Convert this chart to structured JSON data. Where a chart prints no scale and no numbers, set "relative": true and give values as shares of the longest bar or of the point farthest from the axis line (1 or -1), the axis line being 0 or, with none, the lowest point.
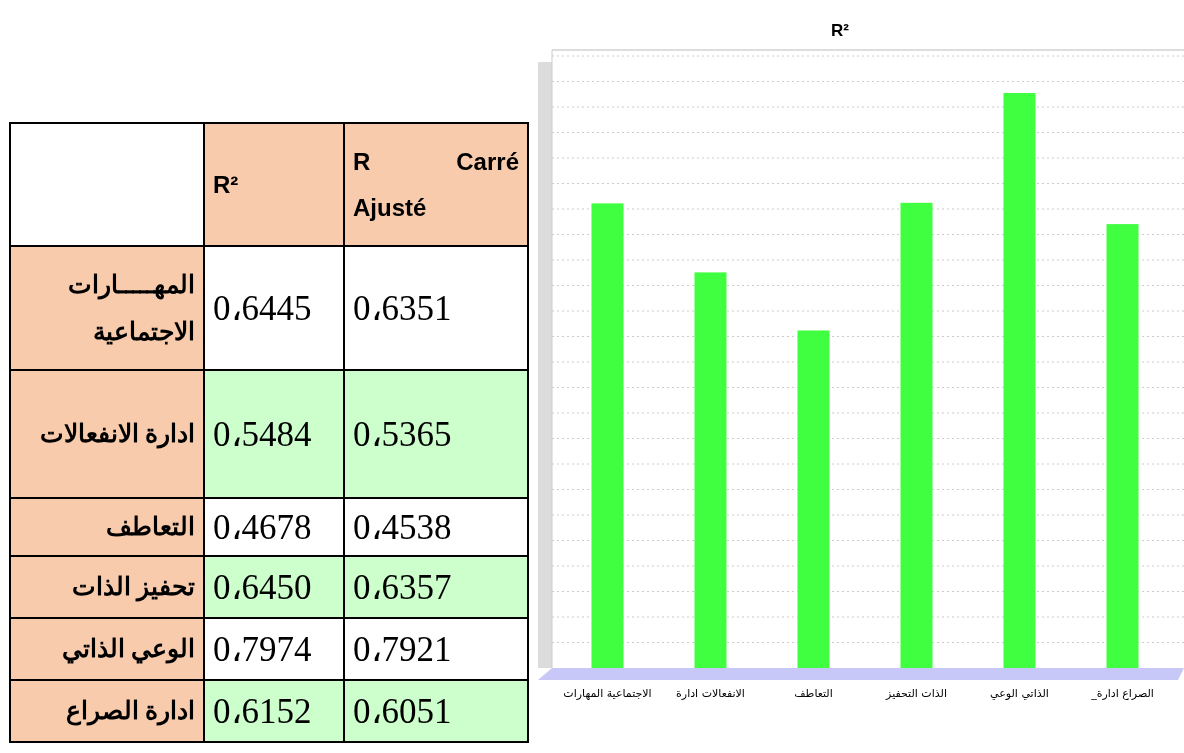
{
  "chart_data": [
    {
      "type": "other",
      "categories": [
        "R²",
        "R Carré Ajusté"
      ],
      "y_categories": [
        "المهـــــارات الاجتماعية",
        "ادارة الانفعالات",
        "التعاطف",
        "تحفيز  الذات",
        "الوعي الذاتي",
        "ادارة  الصراع"
      ],
      "cell_labels": [
        [
          "0،6445",
          "0،6351"
        ],
        [
          "0،5484",
          "0،5365"
        ],
        [
          "0،4678",
          "0،4538"
        ],
        [
          "0،6450",
          "0،6357"
        ],
        [
          "0،7974",
          "0،7921"
        ],
        [
          "0،6152",
          "0،6051"
        ]
      ]
    },
    {
      "type": "bar",
      "title": "R²",
      "relative": true,
      "grid": true,
      "categories": [
        "الاجتماعية المهارات",
        "الانفعالات ادارة",
        "التعاطف",
        "الذات التحفيز",
        "الذاتي الوعي",
        "الصراع ادارة_"
      ],
      "series": [
        {
          "color": "#40ff40",
          "values": [
            0.808,
            0.688,
            0.587,
            0.809,
            1,
            0.772
          ]
        }
      ]
    }
  ]
}
